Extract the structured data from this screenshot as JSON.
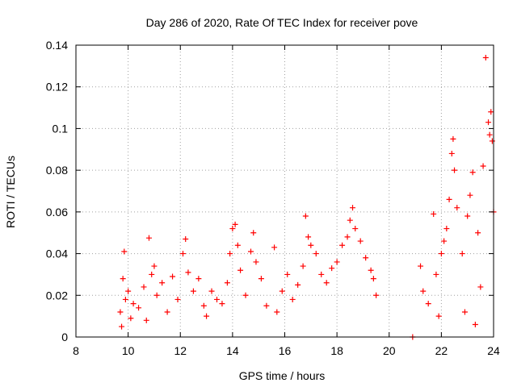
{
  "chart_data": {
    "type": "scatter",
    "title": "Day 286 of 2020, Rate Of TEC Index for receiver pove",
    "xlabel": "GPS time / hours",
    "ylabel": "ROTI / TECUs",
    "xlim": [
      8,
      24
    ],
    "ylim": [
      0,
      0.14
    ],
    "x_ticks": [
      8,
      10,
      12,
      14,
      16,
      18,
      20,
      22,
      24
    ],
    "y_ticks": [
      0,
      0.02,
      0.04,
      0.06,
      0.08,
      0.1,
      0.12,
      0.14
    ],
    "x_tick_labels": [
      "8",
      "10",
      "12",
      "14",
      "16",
      "18",
      "20",
      "22",
      "24"
    ],
    "y_tick_labels": [
      "0",
      "0.02",
      "0.04",
      "0.06",
      "0.08",
      "0.1",
      "0.12",
      "0.14"
    ],
    "grid": true,
    "marker": "+",
    "marker_color": "#ff0000",
    "axis_color": "#000000",
    "grid_color": "#a0a0a0",
    "series": [
      {
        "name": "ROTI",
        "points": [
          [
            9.7,
            0.012
          ],
          [
            9.8,
            0.028
          ],
          [
            9.85,
            0.041
          ],
          [
            9.9,
            0.018
          ],
          [
            10.0,
            0.022
          ],
          [
            10.1,
            0.009
          ],
          [
            10.2,
            0.016
          ],
          [
            10.4,
            0.014
          ],
          [
            10.6,
            0.024
          ],
          [
            10.7,
            0.008
          ],
          [
            10.8,
            0.0475
          ],
          [
            10.9,
            0.03
          ],
          [
            11.0,
            0.034
          ],
          [
            11.1,
            0.02
          ],
          [
            11.3,
            0.026
          ],
          [
            11.5,
            0.012
          ],
          [
            11.7,
            0.029
          ],
          [
            11.9,
            0.018
          ],
          [
            12.1,
            0.04
          ],
          [
            12.2,
            0.047
          ],
          [
            12.3,
            0.031
          ],
          [
            12.5,
            0.022
          ],
          [
            12.7,
            0.028
          ],
          [
            12.9,
            0.015
          ],
          [
            13.0,
            0.01
          ],
          [
            13.2,
            0.022
          ],
          [
            13.4,
            0.018
          ],
          [
            13.6,
            0.016
          ],
          [
            13.8,
            0.026
          ],
          [
            13.9,
            0.04
          ],
          [
            14.0,
            0.052
          ],
          [
            14.1,
            0.054
          ],
          [
            14.2,
            0.044
          ],
          [
            14.3,
            0.032
          ],
          [
            14.5,
            0.02
          ],
          [
            14.7,
            0.041
          ],
          [
            14.8,
            0.05
          ],
          [
            14.9,
            0.036
          ],
          [
            15.1,
            0.028
          ],
          [
            15.3,
            0.015
          ],
          [
            15.6,
            0.043
          ],
          [
            15.7,
            0.012
          ],
          [
            15.9,
            0.022
          ],
          [
            16.1,
            0.03
          ],
          [
            16.3,
            0.018
          ],
          [
            16.5,
            0.025
          ],
          [
            16.7,
            0.034
          ],
          [
            16.8,
            0.058
          ],
          [
            16.9,
            0.048
          ],
          [
            17.0,
            0.044
          ],
          [
            17.2,
            0.04
          ],
          [
            17.4,
            0.03
          ],
          [
            17.6,
            0.026
          ],
          [
            17.8,
            0.033
          ],
          [
            18.0,
            0.036
          ],
          [
            18.2,
            0.044
          ],
          [
            18.4,
            0.048
          ],
          [
            18.5,
            0.056
          ],
          [
            18.6,
            0.062
          ],
          [
            18.7,
            0.052
          ],
          [
            18.9,
            0.046
          ],
          [
            19.1,
            0.038
          ],
          [
            19.3,
            0.032
          ],
          [
            19.4,
            0.028
          ],
          [
            19.5,
            0.02
          ],
          [
            21.2,
            0.034
          ],
          [
            21.3,
            0.022
          ],
          [
            21.5,
            0.016
          ],
          [
            21.7,
            0.059
          ],
          [
            21.8,
            0.03
          ],
          [
            22.0,
            0.04
          ],
          [
            22.1,
            0.046
          ],
          [
            22.2,
            0.052
          ],
          [
            22.3,
            0.066
          ],
          [
            22.4,
            0.088
          ],
          [
            22.45,
            0.095
          ],
          [
            22.5,
            0.08
          ],
          [
            22.6,
            0.062
          ],
          [
            22.8,
            0.04
          ],
          [
            23.0,
            0.058
          ],
          [
            23.1,
            0.068
          ],
          [
            23.2,
            0.079
          ],
          [
            23.4,
            0.05
          ],
          [
            23.6,
            0.082
          ],
          [
            23.7,
            0.134
          ],
          [
            23.8,
            0.103
          ],
          [
            23.85,
            0.097
          ],
          [
            23.9,
            0.108
          ],
          [
            23.95,
            0.094
          ],
          [
            24.0,
            0.06
          ],
          [
            23.5,
            0.024
          ],
          [
            22.9,
            0.012
          ],
          [
            21.9,
            0.01
          ],
          [
            23.3,
            0.006
          ],
          [
            20.9,
            0.0
          ],
          [
            9.75,
            0.005
          ]
        ]
      }
    ]
  }
}
